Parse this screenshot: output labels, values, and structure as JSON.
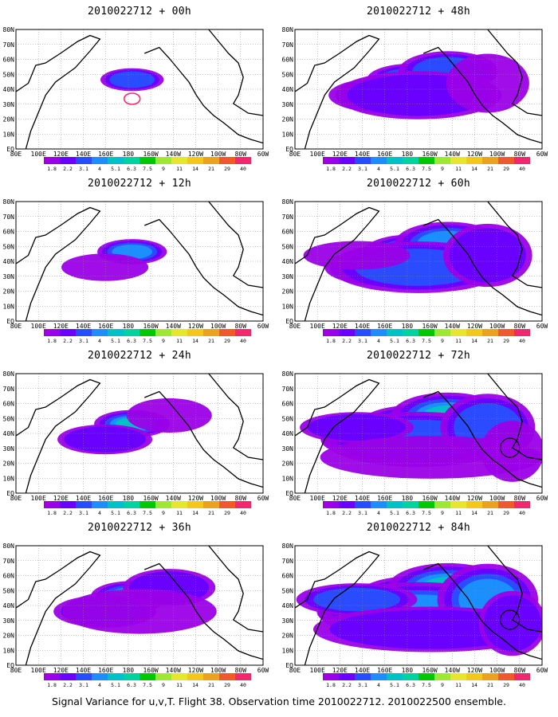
{
  "map": {
    "lat_labels": [
      "80N",
      "70N",
      "60N",
      "50N",
      "40N",
      "30N",
      "20N",
      "10N",
      "EQ"
    ],
    "lon_labels": [
      "80E",
      "100E",
      "120E",
      "140E",
      "160E",
      "180",
      "160W",
      "140W",
      "120W",
      "100W",
      "80W",
      "60W"
    ],
    "colorbar": {
      "colors": [
        "#9b00e8",
        "#6a00ff",
        "#2a4bff",
        "#1c8fff",
        "#00c0c8",
        "#00d2a0",
        "#00c800",
        "#a0e632",
        "#e6e632",
        "#f0c81e",
        "#f0a01e",
        "#f05a28",
        "#f0286e"
      ],
      "ticks": [
        "1.8",
        "2.2",
        "3.1",
        "4",
        "5.1",
        "6.3",
        "7.5",
        "9",
        "11",
        "14",
        "21",
        "29",
        "40"
      ]
    },
    "panels": [
      {
        "title": "2010022712 + 00h",
        "level": 0.25,
        "highlight": "red-circle"
      },
      {
        "title": "2010022712 + 48h",
        "level": 0.65,
        "highlight": ""
      },
      {
        "title": "2010022712 + 12h",
        "level": 0.35,
        "highlight": ""
      },
      {
        "title": "2010022712 + 60h",
        "level": 0.75,
        "highlight": ""
      },
      {
        "title": "2010022712 + 24h",
        "level": 0.45,
        "highlight": ""
      },
      {
        "title": "2010022712 + 72h",
        "level": 0.85,
        "highlight": "black-circle"
      },
      {
        "title": "2010022712 + 36h",
        "level": 0.55,
        "highlight": ""
      },
      {
        "title": "2010022712 + 84h",
        "level": 0.95,
        "highlight": "black-circle"
      }
    ]
  },
  "caption": "Signal Variance for u,v,T. Flight 38. Observation time 2010022712. 2010022500 ensemble."
}
